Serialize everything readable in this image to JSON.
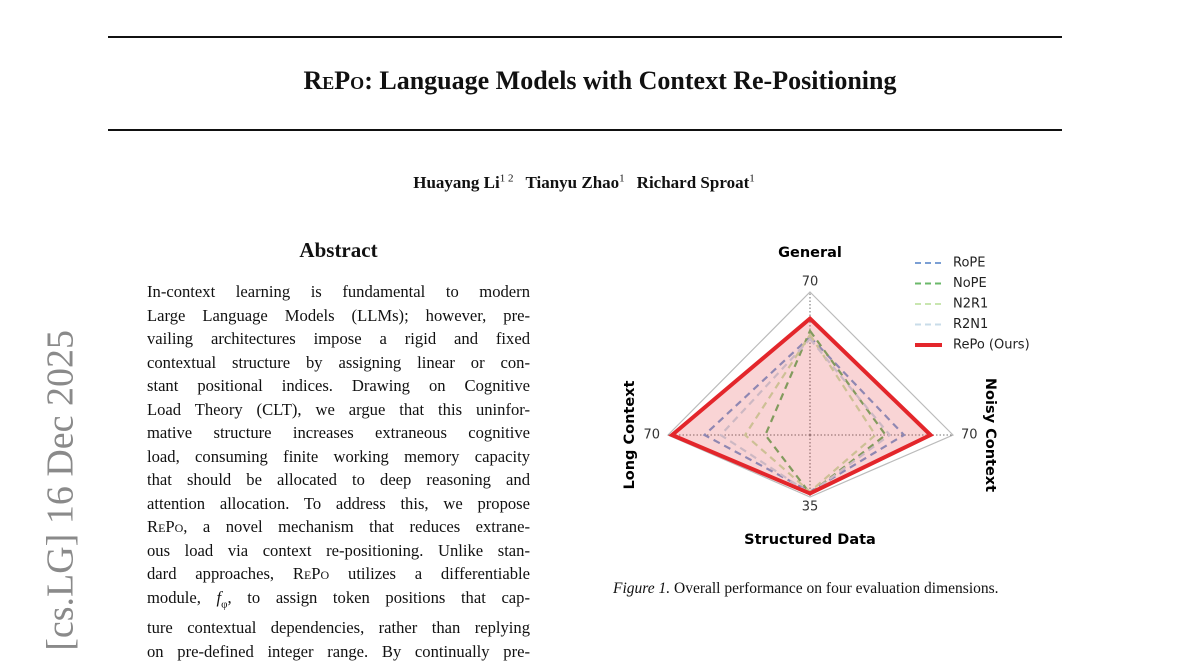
{
  "header": {
    "title_smallcaps": "RePo",
    "title_rest": ": Language Models with Context Re-Positioning"
  },
  "authors": [
    {
      "name": "Huayang Li",
      "affil": "1 2"
    },
    {
      "name": "Tianyu Zhao",
      "affil": "1"
    },
    {
      "name": "Richard Sproat",
      "affil": "1"
    }
  ],
  "side_stamp": "[cs.LG]  16 Dec 2025",
  "abstract": {
    "heading": "Abstract",
    "lines": [
      [
        "In-context learning is fundamental to modern"
      ],
      [
        "Large Language Models (LLMs); however, pre-"
      ],
      [
        "vailing architectures impose a rigid and fixed"
      ],
      [
        "contextual structure by assigning linear or con-"
      ],
      [
        "stant positional indices.  Drawing on Cognitive"
      ],
      [
        "Load Theory (CLT), we argue that this uninfor-"
      ],
      [
        "mative structure increases extraneous cognitive"
      ],
      [
        "load, consuming finite working memory capacity"
      ],
      [
        "that should be allocated to deep reasoning and"
      ],
      [
        "attention allocation. To address this, we propose"
      ],
      [
        {
          "sc": "RePo"
        },
        ", a novel mechanism that reduces extrane-"
      ],
      [
        "ous load via context re-positioning. Unlike stan-"
      ],
      [
        "dard approaches, ",
        {
          "sc": "RePo"
        },
        " utilizes a differentiable"
      ],
      [
        "module, ",
        {
          "math": "f",
          "sub": "φ"
        },
        ", to assign token positions that cap-"
      ],
      [
        "ture contextual dependencies, rather than replying"
      ],
      [
        "on pre-defined integer range. By continually pre-"
      ]
    ]
  },
  "chart_data": {
    "type": "radar",
    "axes": [
      {
        "name": "General",
        "lim": [
          0,
          70
        ],
        "ticks": [
          70
        ]
      },
      {
        "name": "Noisy Context",
        "lim": [
          0,
          70
        ],
        "ticks": [
          70
        ]
      },
      {
        "name": "Structured Data",
        "lim": [
          0,
          35
        ],
        "ticks": [
          35
        ]
      },
      {
        "name": "Long Context",
        "lim": [
          0,
          70
        ],
        "ticks": [
          70
        ]
      }
    ],
    "series": [
      {
        "name": "RoPE",
        "color": "#7b9fd4",
        "linestyle": "dashed",
        "values": [
          48,
          46,
          32,
          52
        ]
      },
      {
        "name": "NoPE",
        "color": "#6bb86a",
        "linestyle": "dashed",
        "values": [
          51,
          37,
          33,
          22
        ]
      },
      {
        "name": "N2R1",
        "color": "#c9e6b0",
        "linestyle": "dashed",
        "values": [
          49,
          32,
          32,
          32
        ]
      },
      {
        "name": "R2N1",
        "color": "#c9dce9",
        "linestyle": "dashed",
        "values": [
          47,
          39,
          33,
          44
        ]
      },
      {
        "name": "RePo (Ours)",
        "color": "#e3262b",
        "linestyle": "solid",
        "fill": true,
        "values": [
          57,
          59,
          33,
          68
        ]
      }
    ],
    "legend": "upper right"
  },
  "caption": {
    "label": "Figure 1.",
    "text": " Overall performance on four evaluation dimensions."
  }
}
